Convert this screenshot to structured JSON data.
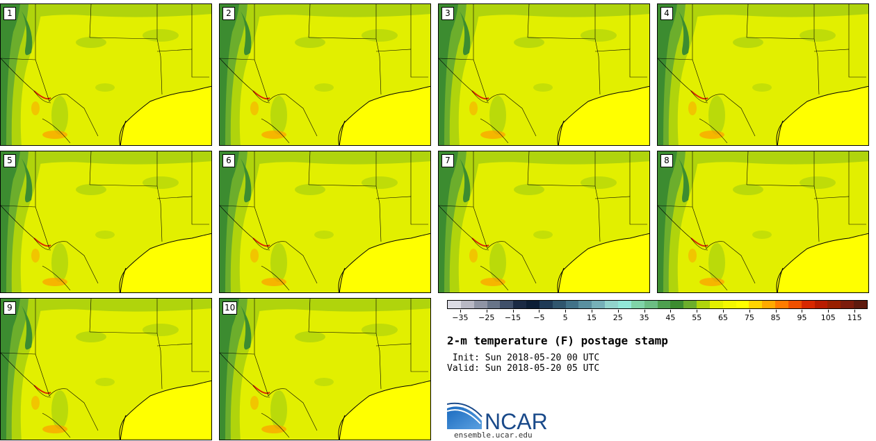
{
  "stamps": [
    {
      "label": "1"
    },
    {
      "label": "2"
    },
    {
      "label": "3"
    },
    {
      "label": "4"
    },
    {
      "label": "5"
    },
    {
      "label": "6"
    },
    {
      "label": "7"
    },
    {
      "label": "8"
    },
    {
      "label": "9"
    },
    {
      "label": "10"
    }
  ],
  "colorbar": {
    "tick_labels": [
      "−35",
      "−25",
      "−15",
      "−5",
      "5",
      "15",
      "25",
      "35",
      "45",
      "55",
      "65",
      "75",
      "85",
      "95",
      "105",
      "115"
    ],
    "colors": [
      "#dcdce4",
      "#b8b8c4",
      "#8f94a4",
      "#687488",
      "#40506a",
      "#1a2a44",
      "#0c1e36",
      "#1e3a56",
      "#30566e",
      "#427288",
      "#5a90a0",
      "#76b0b8",
      "#92d4cc",
      "#92e8d8",
      "#80d4a8",
      "#6cbe84",
      "#4ea050",
      "#3c8c30",
      "#6cae2c",
      "#b0d40c",
      "#e2ef00",
      "#f4f800",
      "#ffff00",
      "#ffd400",
      "#ffaa00",
      "#ff7c00",
      "#f05000",
      "#d82800",
      "#b81c00",
      "#982000",
      "#7c1c0c",
      "#5e1a0e"
    ]
  },
  "title": "2-m temperature (F) postage stamp",
  "init": " Init: Sun 2018-05-20 00 UTC",
  "valid": "Valid: Sun 2018-05-20 05 UTC",
  "logo": {
    "text": "NCAR",
    "color": "#1a4a8a",
    "swoosh_color": "#1a6abf"
  },
  "url": "ensemble.ucar.edu",
  "map_colors": {
    "land": "#e2ef00",
    "warm": "#ffff00",
    "cool_green": "#b0d40c",
    "mountain": "#6cae2c",
    "high": "#3c8c30",
    "hot": "#ff9c00",
    "ocean": "#ffff00"
  }
}
